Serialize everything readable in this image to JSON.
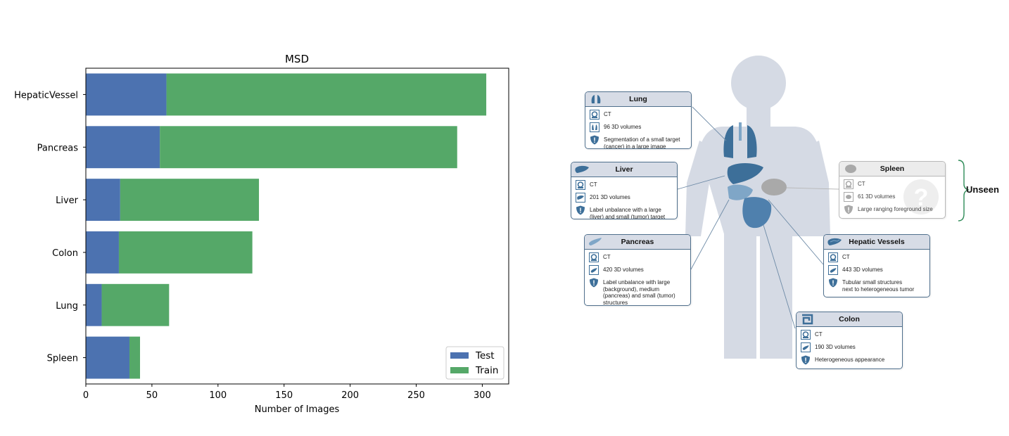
{
  "chart_data": {
    "type": "bar",
    "orientation": "horizontal",
    "stacked": true,
    "title": "MSD",
    "xlabel": "Number of Images",
    "ylabel": "",
    "categories": [
      "HepaticVessel",
      "Pancreas",
      "Liver",
      "Colon",
      "Lung",
      "Spleen"
    ],
    "series": [
      {
        "name": "Test",
        "color": "#4c72b0",
        "values": [
          61,
          56,
          26,
          25,
          12,
          33
        ]
      },
      {
        "name": "Train",
        "color": "#55a868",
        "values": [
          242,
          225,
          105,
          101,
          51,
          8
        ]
      }
    ],
    "xlim": [
      0,
      320
    ],
    "xticks": [
      0,
      50,
      100,
      150,
      200,
      250,
      300
    ],
    "grid": false,
    "legend_position": "lower-right"
  },
  "diagram": {
    "unseen_label": "Unseen",
    "organs": [
      {
        "id": "lung",
        "title": "Lung",
        "modality": "CT",
        "volumes": "96 3D volumes",
        "challenge_lines": [
          "Segmentation of a small target",
          "(cancer) in a large image"
        ],
        "seen": true
      },
      {
        "id": "liver",
        "title": "Liver",
        "modality": "CT",
        "volumes": "201 3D volumes",
        "challenge_lines": [
          "Label unbalance with a large",
          "(liver) and small (tumor) target"
        ],
        "seen": true
      },
      {
        "id": "pancreas",
        "title": "Pancreas",
        "modality": "CT",
        "volumes": "420 3D volumes",
        "challenge_lines": [
          "Label unbalance with large",
          "(background), medium",
          "(pancreas) and small (tumor)",
          "structures"
        ],
        "seen": true
      },
      {
        "id": "spleen",
        "title": "Spleen",
        "modality": "CT",
        "volumes": "61 3D volumes",
        "challenge_lines": [
          "Large ranging foreground size"
        ],
        "seen": false
      },
      {
        "id": "hepatic",
        "title": "Hepatic Vessels",
        "modality": "CT",
        "volumes": "443 3D volumes",
        "challenge_lines": [
          "Tubular small structures",
          "next to heterogeneous tumor"
        ],
        "seen": true
      },
      {
        "id": "colon",
        "title": "Colon",
        "modality": "CT",
        "volumes": "190 3D volumes",
        "challenge_lines": [
          "Heterogeneous appearance"
        ],
        "seen": true
      }
    ],
    "colors": {
      "body": "#d5dae4",
      "organ": "#3d6f99",
      "organ_light": "#7fa6c7",
      "unseen_organ": "#a9a9a9",
      "bracket": "#2e8b57"
    }
  }
}
